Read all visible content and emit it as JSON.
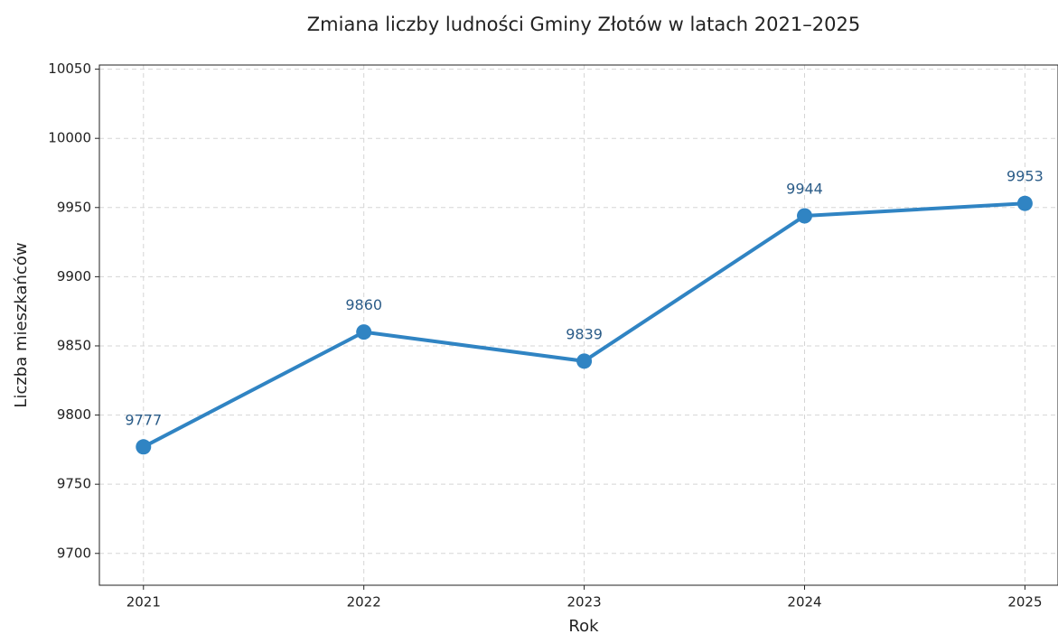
{
  "chart_data": {
    "type": "line",
    "title": "Zmiana liczby ludności Gminy Złotów w latach 2021–2025",
    "xlabel": "Rok",
    "ylabel": "Liczba mieszkańców",
    "x": [
      2021,
      2022,
      2023,
      2024,
      2025
    ],
    "series": [
      {
        "name": "Liczba mieszkańców",
        "color": "#3084c3",
        "values": [
          9777,
          9860,
          9839,
          9944,
          9953
        ]
      }
    ],
    "xlim": [
      2020.8,
      2025.15
    ],
    "xticks": [
      2021,
      2022,
      2023,
      2024,
      2025
    ],
    "ylim": [
      9677,
      10053
    ],
    "yticks": [
      9700,
      9750,
      9800,
      9850,
      9900,
      9950,
      10000,
      10050
    ],
    "grid": true
  }
}
